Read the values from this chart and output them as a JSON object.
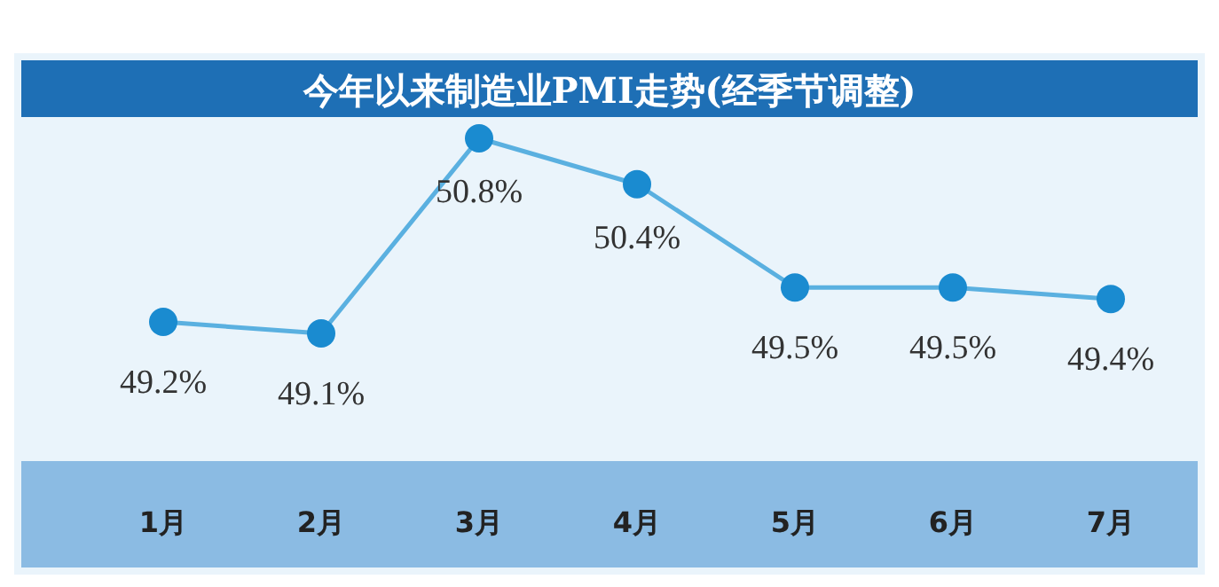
{
  "chart_data": {
    "type": "line",
    "title": "今年以来制造业PMI走势(经季节调整)",
    "categories": [
      "1月",
      "2月",
      "3月",
      "4月",
      "5月",
      "6月",
      "7月"
    ],
    "series": [
      {
        "color": "#5ab0e0",
        "values": [
          49.2,
          49.1,
          50.8,
          50.4,
          49.5,
          49.5,
          49.4
        ],
        "value_labels": [
          "49.2%",
          "49.1%",
          "50.8%",
          "50.4%",
          "49.5%",
          "49.5%",
          "49.4%"
        ]
      }
    ],
    "marker": "circle",
    "line_style": "solid"
  }
}
